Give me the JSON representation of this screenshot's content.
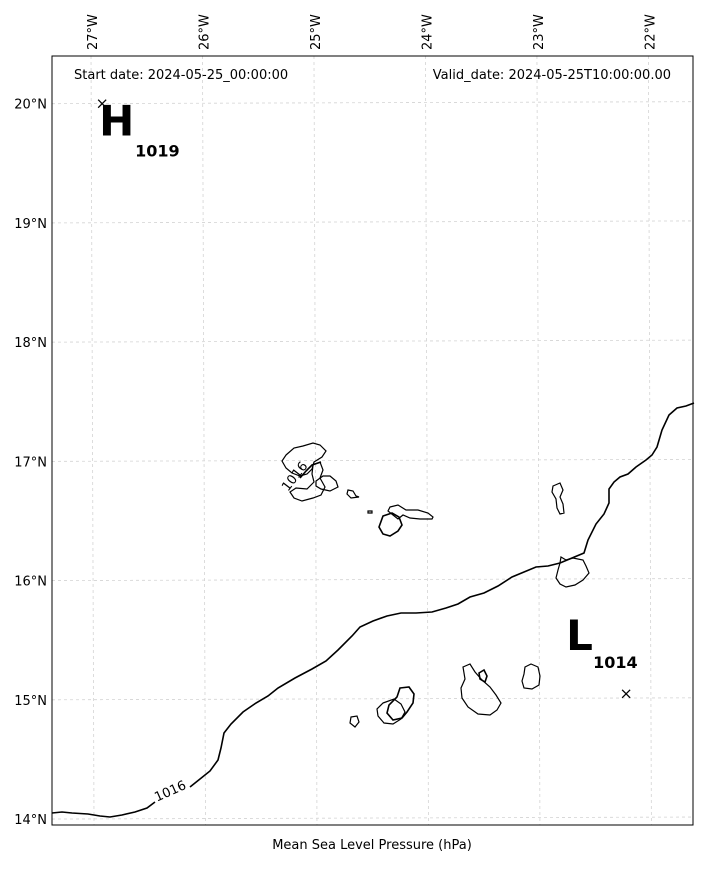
{
  "header": {
    "start_date": "Start date: 2024-05-25_00:00:00",
    "valid_date": "Valid_date: 2024-05-25T10:00:00.00"
  },
  "xlabel": "Mean Sea Level Pressure (hPa)",
  "lon_ticks": [
    {
      "lon": -27,
      "label": "27°W"
    },
    {
      "lon": -26,
      "label": "26°W"
    },
    {
      "lon": -25,
      "label": "25°W"
    },
    {
      "lon": -24,
      "label": "24°W"
    },
    {
      "lon": -23,
      "label": "23°W"
    },
    {
      "lon": -22,
      "label": "22°W"
    }
  ],
  "lat_ticks": [
    {
      "lat": 20,
      "label": "20°N"
    },
    {
      "lat": 19,
      "label": "19°N"
    },
    {
      "lat": 18,
      "label": "18°N"
    },
    {
      "lat": 17,
      "label": "17°N"
    },
    {
      "lat": 16,
      "label": "16°N"
    },
    {
      "lat": 15,
      "label": "15°N"
    },
    {
      "lat": 14,
      "label": "14°N"
    }
  ],
  "extent": {
    "lon_min": -27.35,
    "lon_max": -21.6,
    "lat_min": 13.95,
    "lat_max": 20.4
  },
  "pressure_centers": [
    {
      "type": "high",
      "letter": "H",
      "value": "1019",
      "lon": -26.9,
      "lat": 20.0
    },
    {
      "type": "low",
      "letter": "L",
      "value": "1014",
      "lon": -22.2,
      "lat": 15.05
    }
  ],
  "contours": [
    {
      "level": "1016",
      "label": "1016"
    },
    {
      "level": "1016",
      "label": "1016"
    }
  ],
  "islands": [
    "Santo Antão",
    "São Vicente",
    "Santa Luzia",
    "Branco",
    "Raso",
    "São Nicolau",
    "Sal",
    "Boa Vista",
    "Maio",
    "Santiago",
    "Fogo",
    "Brava"
  ],
  "colors": {
    "coastline": "#000000",
    "contour": "#000000",
    "grid": "#d3d3d3",
    "background": "#ffffff"
  }
}
